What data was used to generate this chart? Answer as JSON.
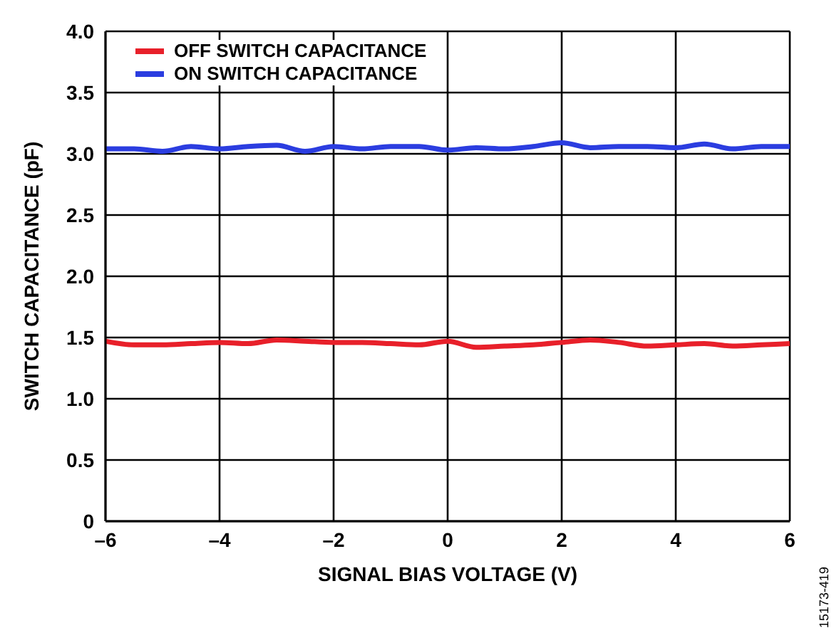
{
  "chart_data": {
    "type": "line",
    "xlabel": "SIGNAL BIAS VOLTAGE (V)",
    "ylabel": "SWITCH CAPACITANCE (pF)",
    "x": [
      -6,
      -5.5,
      -5,
      -4.5,
      -4,
      -3.5,
      -3,
      -2.5,
      -2,
      -1.5,
      -1,
      -0.5,
      0,
      0.5,
      1,
      1.5,
      2,
      2.5,
      3,
      3.5,
      4,
      4.5,
      5,
      5.5,
      6
    ],
    "series": [
      {
        "name": "OFF SWITCH CAPACITANCE",
        "color": "#e8202a",
        "values": [
          1.47,
          1.44,
          1.44,
          1.45,
          1.46,
          1.45,
          1.48,
          1.47,
          1.46,
          1.46,
          1.45,
          1.44,
          1.47,
          1.42,
          1.43,
          1.44,
          1.46,
          1.48,
          1.46,
          1.43,
          1.44,
          1.45,
          1.43,
          1.44,
          1.45
        ]
      },
      {
        "name": "ON SWITCH CAPACITANCE",
        "color": "#2b3de0",
        "values": [
          3.04,
          3.04,
          3.02,
          3.06,
          3.04,
          3.06,
          3.07,
          3.02,
          3.06,
          3.04,
          3.06,
          3.06,
          3.03,
          3.05,
          3.04,
          3.06,
          3.09,
          3.05,
          3.06,
          3.06,
          3.05,
          3.08,
          3.04,
          3.06,
          3.06
        ]
      }
    ],
    "xlim": [
      -6,
      6
    ],
    "xticks": [
      {
        "value": -6,
        "label": "–6"
      },
      {
        "value": -4,
        "label": "–4"
      },
      {
        "value": -2,
        "label": "–2"
      },
      0,
      2,
      4,
      6
    ],
    "ylim": [
      0,
      4
    ],
    "yticks": [
      0,
      {
        "value": 0.5,
        "label": "0.5"
      },
      {
        "value": 1,
        "label": "1.0"
      },
      {
        "value": 1.5,
        "label": "1.5"
      },
      {
        "value": 2,
        "label": "2.0"
      },
      {
        "value": 2.5,
        "label": "2.5"
      },
      {
        "value": 3,
        "label": "3.0"
      },
      {
        "value": 3.5,
        "label": "3.5"
      },
      {
        "value": 4,
        "label": "4.0"
      }
    ],
    "grid": true,
    "legend": "top left",
    "marker": "none",
    "line_style": "solid",
    "annotations": [
      "15173-419"
    ]
  }
}
